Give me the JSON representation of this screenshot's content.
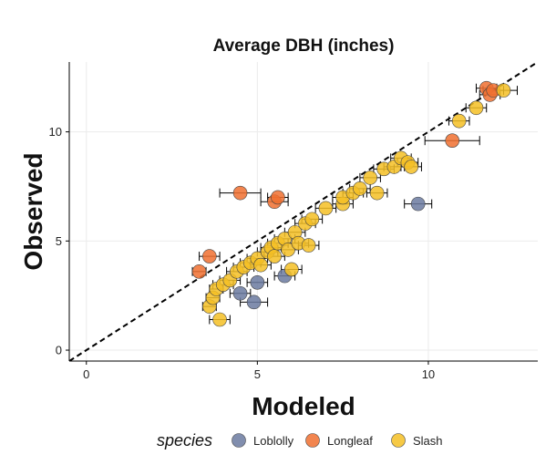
{
  "chart_data": {
    "type": "scatter",
    "title": "Average DBH (inches)",
    "xlabel": "Modeled",
    "ylabel": "Observed",
    "xlim": [
      -0.5,
      13.2
    ],
    "ylim": [
      -0.5,
      13.2
    ],
    "xticks": [
      0,
      5,
      10
    ],
    "yticks": [
      0,
      5,
      10
    ],
    "grid": true,
    "reference_line": {
      "slope": 1,
      "intercept": 0,
      "style": "dashed"
    },
    "legend": {
      "title": "species",
      "position": "bottom"
    },
    "colors": {
      "Loblolly": "#6b7aa0",
      "Longleaf": "#f07030",
      "Slash": "#f5bf25"
    },
    "series": [
      {
        "name": "Loblolly",
        "points": [
          {
            "x": 4.5,
            "y": 2.6,
            "xerr": 0.3
          },
          {
            "x": 4.9,
            "y": 2.2,
            "xerr": 0.4
          },
          {
            "x": 5.0,
            "y": 3.1,
            "xerr": 0.3
          },
          {
            "x": 5.8,
            "y": 3.4,
            "xerr": 0.3
          },
          {
            "x": 9.7,
            "y": 6.7,
            "xerr": 0.4
          }
        ]
      },
      {
        "name": "Longleaf",
        "points": [
          {
            "x": 3.3,
            "y": 3.6,
            "xerr": 0.2
          },
          {
            "x": 3.6,
            "y": 4.3,
            "xerr": 0.3
          },
          {
            "x": 4.5,
            "y": 7.2,
            "xerr": 0.6
          },
          {
            "x": 5.5,
            "y": 6.8,
            "xerr": 0.4
          },
          {
            "x": 5.6,
            "y": 7.0,
            "xerr": 0.3
          },
          {
            "x": 10.7,
            "y": 9.6,
            "xerr": 0.8
          },
          {
            "x": 11.7,
            "y": 12.0,
            "xerr": 0.3
          },
          {
            "x": 11.8,
            "y": 11.7,
            "xerr": 0.3
          },
          {
            "x": 11.9,
            "y": 11.9,
            "xerr": 0.3
          }
        ]
      },
      {
        "name": "Slash",
        "points": [
          {
            "x": 3.9,
            "y": 1.4,
            "xerr": 0.3
          },
          {
            "x": 3.6,
            "y": 2.0,
            "xerr": 0.2
          },
          {
            "x": 3.7,
            "y": 2.4,
            "xerr": 0.2
          },
          {
            "x": 3.8,
            "y": 2.8,
            "xerr": 0.2
          },
          {
            "x": 4.0,
            "y": 3.0,
            "xerr": 0.3
          },
          {
            "x": 4.2,
            "y": 3.2,
            "xerr": 0.3
          },
          {
            "x": 4.4,
            "y": 3.6,
            "xerr": 0.3
          },
          {
            "x": 4.6,
            "y": 3.8,
            "xerr": 0.3
          },
          {
            "x": 4.8,
            "y": 4.0,
            "xerr": 0.3
          },
          {
            "x": 5.0,
            "y": 4.2,
            "xerr": 0.3
          },
          {
            "x": 5.1,
            "y": 3.9,
            "xerr": 0.3
          },
          {
            "x": 5.3,
            "y": 4.5,
            "xerr": 0.3
          },
          {
            "x": 5.4,
            "y": 4.7,
            "xerr": 0.3
          },
          {
            "x": 5.5,
            "y": 4.3,
            "xerr": 0.3
          },
          {
            "x": 5.6,
            "y": 4.9,
            "xerr": 0.3
          },
          {
            "x": 5.8,
            "y": 5.1,
            "xerr": 0.3
          },
          {
            "x": 5.9,
            "y": 4.6,
            "xerr": 0.3
          },
          {
            "x": 6.0,
            "y": 3.7,
            "xerr": 0.3
          },
          {
            "x": 6.1,
            "y": 5.4,
            "xerr": 0.3
          },
          {
            "x": 6.2,
            "y": 4.9,
            "xerr": 0.3
          },
          {
            "x": 6.4,
            "y": 5.8,
            "xerr": 0.3
          },
          {
            "x": 6.5,
            "y": 4.8,
            "xerr": 0.3
          },
          {
            "x": 6.6,
            "y": 6.0,
            "xerr": 0.3
          },
          {
            "x": 7.0,
            "y": 6.5,
            "xerr": 0.3
          },
          {
            "x": 7.5,
            "y": 6.7,
            "xerr": 0.3
          },
          {
            "x": 7.5,
            "y": 7.0,
            "xerr": 0.3
          },
          {
            "x": 7.8,
            "y": 7.2,
            "xerr": 0.3
          },
          {
            "x": 8.0,
            "y": 7.4,
            "xerr": 0.3
          },
          {
            "x": 8.3,
            "y": 7.9,
            "xerr": 0.3
          },
          {
            "x": 8.5,
            "y": 7.2,
            "xerr": 0.3
          },
          {
            "x": 8.7,
            "y": 8.3,
            "xerr": 0.3
          },
          {
            "x": 9.0,
            "y": 8.4,
            "xerr": 0.3
          },
          {
            "x": 9.2,
            "y": 8.8,
            "xerr": 0.3
          },
          {
            "x": 9.4,
            "y": 8.6,
            "xerr": 0.3
          },
          {
            "x": 9.5,
            "y": 8.4,
            "xerr": 0.3
          },
          {
            "x": 10.9,
            "y": 10.5,
            "xerr": 0.3
          },
          {
            "x": 11.4,
            "y": 11.1,
            "xerr": 0.3
          },
          {
            "x": 12.2,
            "y": 11.9,
            "xerr": 0.4
          }
        ]
      }
    ]
  }
}
